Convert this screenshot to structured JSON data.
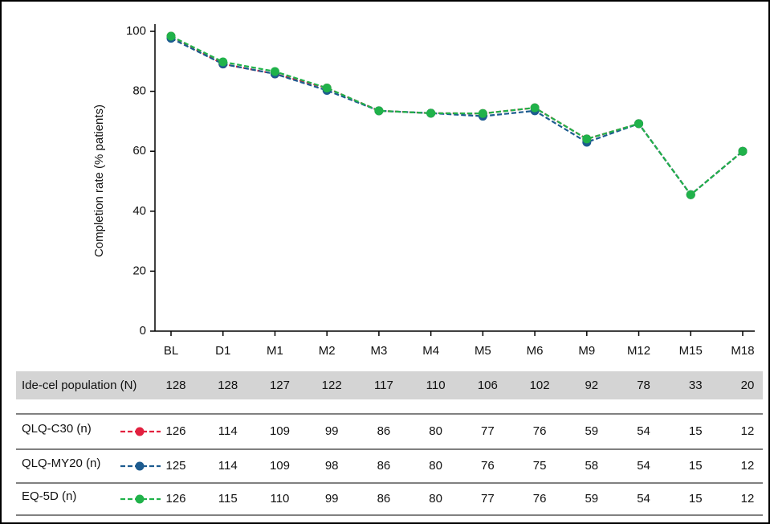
{
  "chart_data": {
    "type": "line",
    "y_label": "Completion rate (% patients)",
    "categories": [
      "BL",
      "D1",
      "M1",
      "M2",
      "M3",
      "M4",
      "M5",
      "M6",
      "M9",
      "M12",
      "M15",
      "M18"
    ],
    "series": [
      {
        "name": "QLQ-C30 (n)",
        "color": "#e2203f",
        "values": [
          98.4,
          89.1,
          85.8,
          81.1,
          73.5,
          72.7,
          72.6,
          74.5,
          64.1,
          69.2,
          45.5,
          60.0
        ]
      },
      {
        "name": "QLQ-MY20 (n)",
        "color": "#1d5b8f",
        "values": [
          97.7,
          89.1,
          85.8,
          80.3,
          73.5,
          72.7,
          71.7,
          73.5,
          63.0,
          69.2,
          45.5,
          60.0
        ]
      },
      {
        "name": "EQ-5D (n)",
        "color": "#20b24a",
        "values": [
          98.4,
          89.8,
          86.6,
          81.1,
          73.5,
          72.7,
          72.6,
          74.5,
          64.1,
          69.2,
          45.5,
          60.0
        ]
      }
    ],
    "ylim": [
      0,
      100
    ],
    "yticks": [
      0,
      20,
      40,
      60,
      80,
      100
    ]
  },
  "table": {
    "population": {
      "label": "Ide-cel population (N)",
      "values": [
        128,
        128,
        127,
        122,
        117,
        110,
        106,
        102,
        92,
        78,
        33,
        20
      ]
    },
    "counts": [
      [
        126,
        114,
        109,
        99,
        86,
        80,
        77,
        76,
        59,
        54,
        15,
        12
      ],
      [
        125,
        114,
        109,
        98,
        86,
        80,
        76,
        75,
        58,
        54,
        15,
        12
      ],
      [
        126,
        115,
        110,
        99,
        86,
        80,
        77,
        76,
        59,
        54,
        15,
        12
      ]
    ]
  }
}
